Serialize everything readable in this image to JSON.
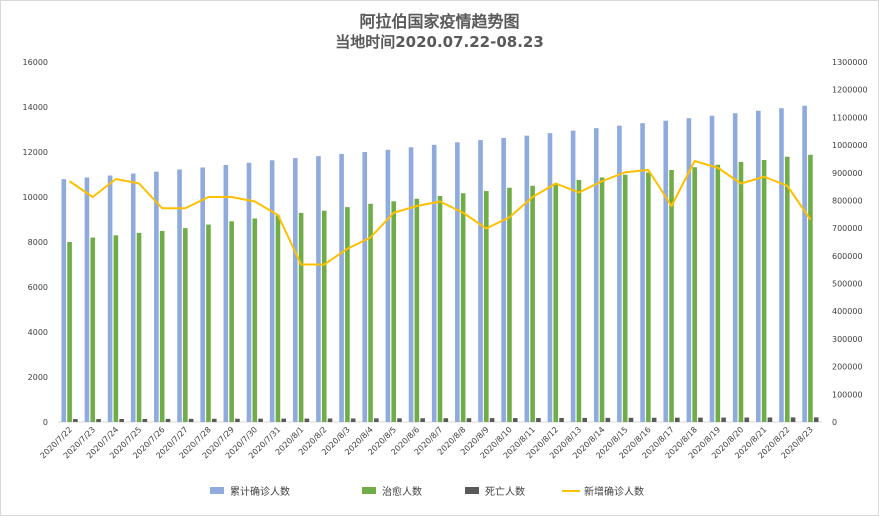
{
  "chart_data": {
    "type": "bar",
    "title": "阿拉伯国家疫情趋势图",
    "subtitle": "当地时间2020.07.22-08.23",
    "categories": [
      "2020/7/22",
      "2020/7/23",
      "2020/7/24",
      "2020/7/25",
      "2020/7/26",
      "2020/7/27",
      "2020/7/28",
      "2020/7/29",
      "2020/7/30",
      "2020/7/31",
      "2020/8/1",
      "2020/8/2",
      "2020/8/3",
      "2020/8/4",
      "2020/8/5",
      "2020/8/6",
      "2020/8/7",
      "2020/8/8",
      "2020/8/9",
      "2020/8/10",
      "2020/8/11",
      "2020/8/12",
      "2020/8/13",
      "2020/8/14",
      "2020/8/15",
      "2020/8/16",
      "2020/8/17",
      "2020/8/18",
      "2020/8/19",
      "2020/8/20",
      "2020/8/21",
      "2020/8/22",
      "2020/8/23"
    ],
    "y_left": {
      "ylim": [
        0,
        16000
      ],
      "ticks": [
        "0",
        "2000",
        "4000",
        "6000",
        "8000",
        "10000",
        "12000",
        "14000",
        "16000"
      ]
    },
    "y_right": {
      "ylim": [
        0,
        1300000
      ],
      "ticks": [
        "0",
        "100000",
        "200000",
        "300000",
        "400000",
        "500000",
        "600000",
        "700000",
        "800000",
        "900000",
        "1000000",
        "1100000",
        "1200000",
        "1300000"
      ]
    },
    "series": [
      {
        "name": "累计确诊人数",
        "type": "bar",
        "axis": "right",
        "color": "#8faadc",
        "values": [
          877000,
          883000,
          890000,
          897000,
          904000,
          912000,
          919000,
          928000,
          936000,
          945000,
          953000,
          960000,
          968000,
          975000,
          983000,
          992000,
          1001000,
          1010000,
          1018000,
          1026000,
          1034000,
          1043000,
          1052000,
          1061000,
          1070000,
          1079000,
          1088000,
          1097000,
          1106000,
          1115000,
          1124000,
          1133000,
          1142000
        ],
        "color_note": "blue"
      },
      {
        "name": "治愈人数",
        "type": "bar",
        "axis": "right",
        "color": "#70ad47",
        "values": [
          650000,
          666000,
          674000,
          683000,
          690000,
          700000,
          713000,
          725000,
          735000,
          746000,
          755000,
          763000,
          776000,
          788000,
          797000,
          806000,
          816000,
          826000,
          834000,
          846000,
          853000,
          862000,
          874000,
          883000,
          893000,
          901000,
          910000,
          920000,
          929000,
          939000,
          946000,
          958000,
          965000
        ]
      },
      {
        "name": "死亡人数",
        "type": "bar",
        "axis": "right",
        "color": "#595959",
        "values": [
          10500,
          10700,
          10800,
          11000,
          11200,
          11400,
          11600,
          11800,
          12000,
          12200,
          12400,
          12600,
          12800,
          13000,
          13200,
          13400,
          13600,
          13800,
          14000,
          14200,
          14400,
          14600,
          14800,
          15000,
          15200,
          15400,
          15600,
          15800,
          16000,
          16200,
          16400,
          16600,
          16800
        ]
      },
      {
        "name": "新增确诊人数",
        "type": "line",
        "axis": "left",
        "color": "#ffc000",
        "values": [
          10700,
          10000,
          10800,
          10600,
          9500,
          9500,
          10000,
          10000,
          9800,
          9200,
          7000,
          7000,
          7700,
          8200,
          9300,
          9600,
          9800,
          9300,
          8600,
          9100,
          10000,
          10600,
          10200,
          10700,
          11100,
          11200,
          9600,
          11600,
          11300,
          10600,
          10900,
          10500,
          9000
        ]
      }
    ],
    "legend": "bottom",
    "grid": false
  }
}
